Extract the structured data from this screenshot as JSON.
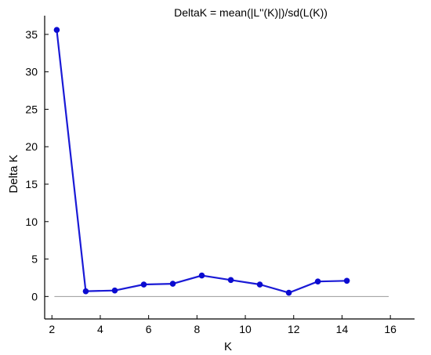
{
  "chart_data": {
    "type": "line",
    "title": "DeltaK = mean(|L''(K)|)/sd(L(K))",
    "xlabel": "K",
    "ylabel": "Delta K",
    "xlim": [
      1.7,
      17
    ],
    "ylim": [
      -3,
      37.5
    ],
    "xticks": [
      2,
      4,
      6,
      8,
      10,
      12,
      14,
      16
    ],
    "yticks": [
      0,
      5,
      10,
      15,
      20,
      25,
      30,
      35
    ],
    "grid": false,
    "reference_line_y": 0,
    "series": [
      {
        "x": [
          2.2,
          3.4,
          4.6,
          5.8,
          7.0,
          8.2,
          9.4,
          10.6,
          11.8,
          13.0,
          14.2
        ],
        "values": [
          35.6,
          0.7,
          0.8,
          1.6,
          1.7,
          2.8,
          2.2,
          1.6,
          0.5,
          2.0,
          2.1
        ]
      }
    ],
    "colors": {
      "line": "#1a1ad6",
      "marker": "#0b0bd0",
      "zero_line": "#9a9a9a",
      "axis": "#000000"
    }
  }
}
